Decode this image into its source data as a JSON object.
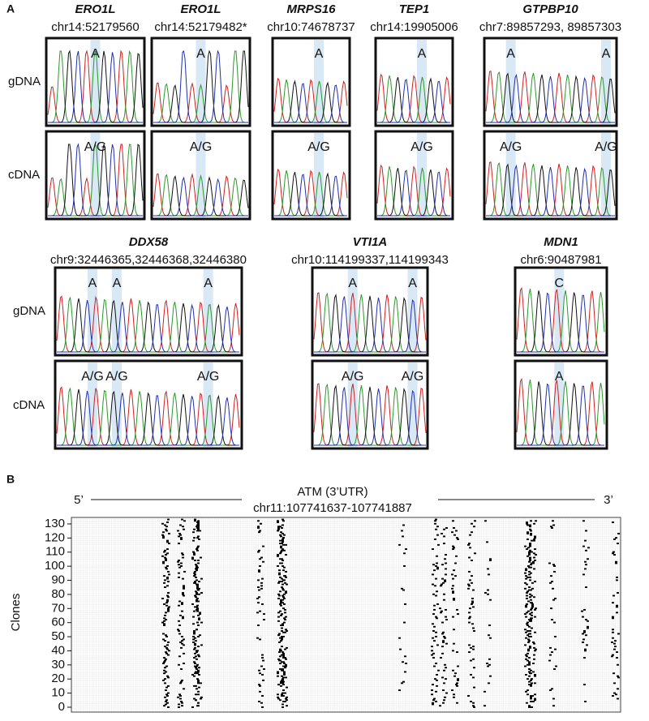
{
  "panel_a": {
    "label": "A",
    "row_labels": [
      "gDNA",
      "cDNA"
    ],
    "panels": [
      {
        "gene": "ERO1L",
        "locus": "chr14:52179560",
        "gdna": [
          "A"
        ],
        "cdna": [
          "A/G"
        ]
      },
      {
        "gene": "ERO1L",
        "locus": "chr14:52179482*",
        "gdna": [
          "A"
        ],
        "cdna": [
          "A/G"
        ]
      },
      {
        "gene": "MRPS16",
        "locus": "chr10:74678737",
        "gdna": [
          "A"
        ],
        "cdna": [
          "A/G"
        ]
      },
      {
        "gene": "TEP1",
        "locus": "chr14:19905006",
        "gdna": [
          "A"
        ],
        "cdna": [
          "A/G"
        ]
      },
      {
        "gene": "GTPBP10",
        "locus": "chr7:89857293, 89857303",
        "gdna": [
          "A",
          "A"
        ],
        "cdna": [
          "A/G",
          "A/G"
        ]
      },
      {
        "gene": "DDX58",
        "locus": "chr9:32446365,32446368,32446380",
        "gdna": [
          "A",
          "A",
          "A"
        ],
        "cdna": [
          "A/G",
          "A/G",
          "A/G"
        ]
      },
      {
        "gene": "VTI1A",
        "locus": "chr10:114199337,114199343",
        "gdna": [
          "A",
          "A"
        ],
        "cdna": [
          "A/G",
          "A/G"
        ]
      },
      {
        "gene": "MDN1",
        "locus": "chr6:90487981",
        "gdna": [
          "C"
        ],
        "cdna": [
          "A"
        ]
      }
    ]
  },
  "panel_b": {
    "label": "B",
    "title": "ATM (3’UTR)",
    "locus": "chr11:107741637-107741887",
    "five_prime": "5’",
    "three_prime": "3’",
    "y_axis_label": "Clones",
    "yticks": [
      0,
      10,
      20,
      30,
      40,
      50,
      60,
      70,
      80,
      90,
      100,
      110,
      120,
      130
    ]
  }
}
